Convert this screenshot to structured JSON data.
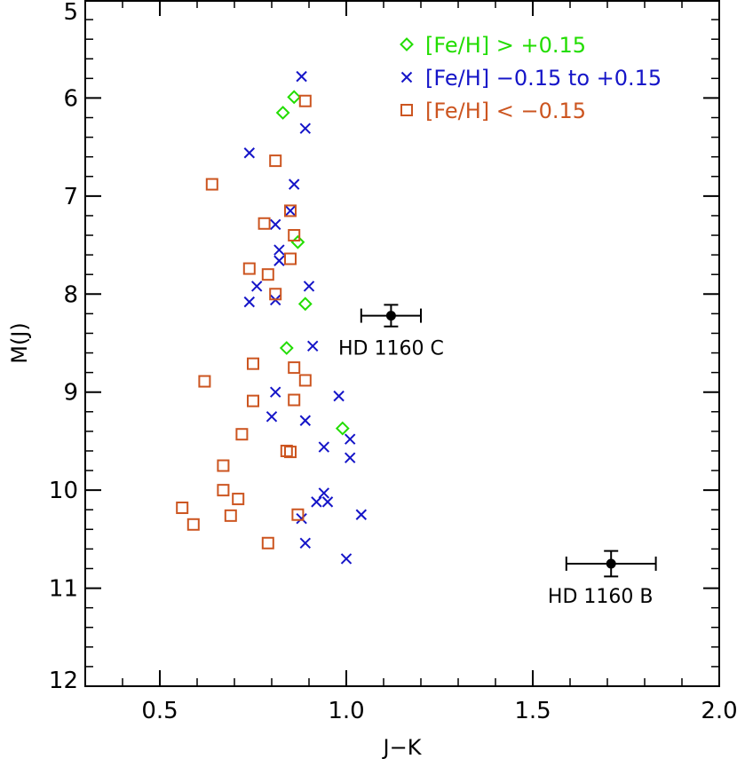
{
  "chart_data": {
    "type": "scatter",
    "xlabel": "J−K",
    "ylabel": "M(J)",
    "xlim": [
      0.3,
      2.0
    ],
    "ylim": [
      5,
      12
    ],
    "y_inverted": true,
    "xticks": [
      {
        "value": 0.5,
        "label": "0.5"
      },
      {
        "value": 1.0,
        "label": "1.0"
      },
      {
        "value": 1.5,
        "label": "1.5"
      },
      {
        "value": 2.0,
        "label": "2.0"
      }
    ],
    "yticks": [
      {
        "value": 5,
        "label": "5"
      },
      {
        "value": 6,
        "label": "6"
      },
      {
        "value": 7,
        "label": "7"
      },
      {
        "value": 8,
        "label": "8"
      },
      {
        "value": 9,
        "label": "9"
      },
      {
        "value": 10,
        "label": "10"
      },
      {
        "value": 11,
        "label": "11"
      },
      {
        "value": 12,
        "label": "12"
      }
    ],
    "legend_position": "top-right",
    "series": [
      {
        "name": "[Fe/H] > +0.15",
        "marker": "diamond",
        "color": "#22dd00",
        "points": [
          [
            0.86,
            5.99
          ],
          [
            0.83,
            6.15
          ],
          [
            0.87,
            7.47
          ],
          [
            0.89,
            8.1
          ],
          [
            0.84,
            8.55
          ],
          [
            0.99,
            9.37
          ]
        ]
      },
      {
        "name": "[Fe/H] −0.15 to +0.15",
        "marker": "cross",
        "color": "#1515c8",
        "points": [
          [
            0.88,
            5.78
          ],
          [
            0.89,
            6.31
          ],
          [
            0.74,
            6.56
          ],
          [
            0.86,
            6.88
          ],
          [
            0.85,
            7.15
          ],
          [
            0.81,
            7.29
          ],
          [
            0.82,
            7.55
          ],
          [
            0.82,
            7.66
          ],
          [
            0.76,
            7.92
          ],
          [
            0.9,
            7.92
          ],
          [
            0.74,
            8.08
          ],
          [
            0.81,
            8.06
          ],
          [
            0.91,
            8.53
          ],
          [
            0.81,
            9.0
          ],
          [
            0.98,
            9.04
          ],
          [
            0.8,
            9.25
          ],
          [
            0.89,
            9.29
          ],
          [
            1.01,
            9.48
          ],
          [
            0.94,
            9.56
          ],
          [
            1.01,
            9.67
          ],
          [
            0.94,
            10.03
          ],
          [
            0.92,
            10.12
          ],
          [
            0.95,
            10.12
          ],
          [
            1.04,
            10.25
          ],
          [
            0.88,
            10.29
          ],
          [
            0.89,
            10.54
          ],
          [
            1.0,
            10.7
          ]
        ]
      },
      {
        "name": "[Fe/H] < −0.15",
        "marker": "square",
        "color": "#cc5520",
        "points": [
          [
            0.89,
            6.03
          ],
          [
            0.81,
            6.64
          ],
          [
            0.64,
            6.88
          ],
          [
            0.85,
            7.15
          ],
          [
            0.78,
            7.28
          ],
          [
            0.86,
            7.4
          ],
          [
            0.85,
            7.64
          ],
          [
            0.74,
            7.74
          ],
          [
            0.79,
            7.8
          ],
          [
            0.81,
            8.0
          ],
          [
            0.75,
            8.71
          ],
          [
            0.86,
            8.75
          ],
          [
            0.62,
            8.89
          ],
          [
            0.89,
            8.88
          ],
          [
            0.75,
            9.09
          ],
          [
            0.86,
            9.08
          ],
          [
            0.72,
            9.43
          ],
          [
            0.84,
            9.6
          ],
          [
            0.85,
            9.61
          ],
          [
            0.67,
            9.75
          ],
          [
            0.67,
            10.0
          ],
          [
            0.71,
            10.09
          ],
          [
            0.56,
            10.18
          ],
          [
            0.69,
            10.26
          ],
          [
            0.87,
            10.25
          ],
          [
            0.59,
            10.35
          ],
          [
            0.79,
            10.54
          ]
        ]
      },
      {
        "name": "HD 1160",
        "marker": "filled-circle-errorbar",
        "color": "#000000",
        "points": [
          {
            "x": 1.12,
            "y": 8.22,
            "xerr": 0.08,
            "yerr": 0.11,
            "label": "HD 1160 C"
          },
          {
            "x": 1.71,
            "y": 10.75,
            "xerr": 0.12,
            "yerr": 0.13,
            "label": "HD 1160 B"
          }
        ]
      }
    ]
  }
}
